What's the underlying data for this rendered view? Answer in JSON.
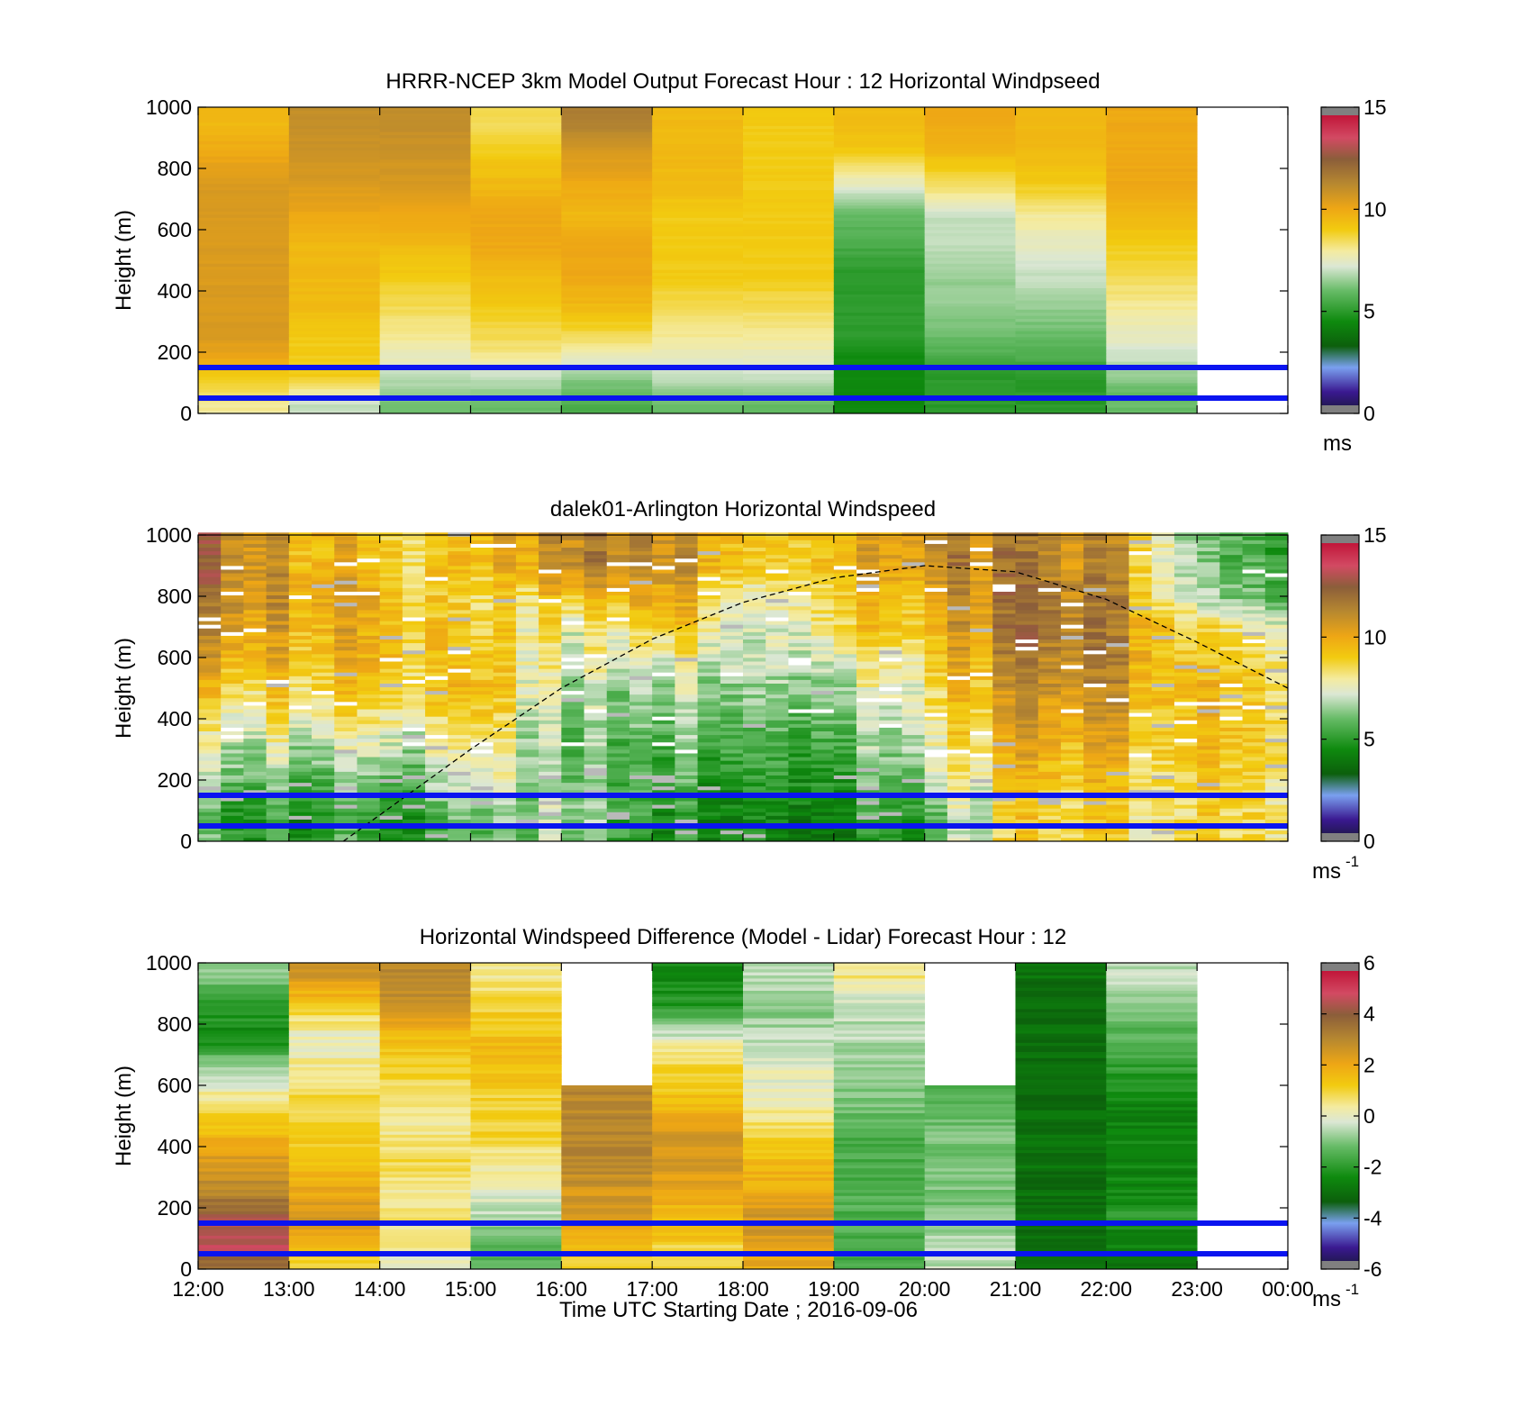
{
  "figure": {
    "xlabel": "Time UTC  Starting Date ; 2016-09-06",
    "x_ticks": [
      "12:00",
      "13:00",
      "14:00",
      "15:00",
      "16:00",
      "17:00",
      "18:00",
      "19:00",
      "20:00",
      "21:00",
      "22:00",
      "23:00",
      "00:00"
    ],
    "reference_lines_m": [
      150,
      50
    ],
    "reference_line_color": "#0a14f0"
  },
  "chart_data": [
    {
      "type": "heatmap",
      "title": "HRRR-NCEP 3km Model Output   Forecast Hour : 12 Horizontal Windpseed",
      "ylabel": "Height (m)",
      "ylim": [
        0,
        1000
      ],
      "y_ticks": [
        "0",
        "200",
        "400",
        "600",
        "800",
        "1000"
      ],
      "x_hours_utc": [
        12,
        13,
        14,
        15,
        16,
        17,
        18,
        19,
        20,
        21,
        22
      ],
      "colorbar": {
        "min": 0,
        "max": 15,
        "ticks": [
          "0",
          "5",
          "10",
          "15"
        ],
        "unit": "ms"
      },
      "value_grid_ms": {
        "heights_m": [
          25,
          75,
          125,
          175,
          250,
          350,
          450,
          550,
          650,
          750,
          850,
          950
        ],
        "columns": [
          [
            8,
            8.5,
            9,
            10,
            10.5,
            10.5,
            10.5,
            10.5,
            10.5,
            10.5,
            10,
            9.5
          ],
          [
            7,
            8,
            9,
            9,
            9,
            9.5,
            9.5,
            9.5,
            10,
            10.5,
            10.8,
            11
          ],
          [
            6,
            6.5,
            7,
            7.5,
            8,
            8.5,
            9,
            9.5,
            10,
            10.5,
            10.8,
            11
          ],
          [
            6,
            6.5,
            7,
            8,
            8.5,
            9,
            9.5,
            10,
            10,
            9.5,
            9,
            8.5
          ],
          [
            5.5,
            6,
            6.5,
            7.5,
            8.5,
            9.5,
            10,
            10,
            9.5,
            10,
            10.5,
            11.5
          ],
          [
            6,
            6.5,
            7,
            7.5,
            8,
            8.5,
            9,
            9,
            9,
            9.5,
            9.5,
            9.5
          ],
          [
            6,
            6.5,
            7,
            7.5,
            8,
            8.5,
            9,
            9,
            9,
            9,
            9,
            9
          ],
          [
            4.5,
            4.5,
            4.5,
            4.5,
            5,
            5,
            5,
            5.5,
            6,
            7.5,
            9,
            9.5
          ],
          [
            5,
            5,
            5,
            5.5,
            6,
            6.5,
            6.5,
            7,
            7,
            8.5,
            9.5,
            10
          ],
          [
            5,
            5,
            5,
            5.5,
            6,
            6.5,
            7,
            7.5,
            8,
            9,
            9.5,
            9.5
          ],
          [
            6,
            6,
            6.5,
            7,
            7.5,
            8,
            8.5,
            9,
            9.5,
            10,
            10,
            10
          ]
        ]
      }
    },
    {
      "type": "heatmap",
      "title": "dalek01-Arlington  Horizontal Windspeed",
      "ylabel": "Height (m)",
      "ylim": [
        0,
        1000
      ],
      "y_ticks": [
        "0",
        "200",
        "400",
        "600",
        "800",
        "1000"
      ],
      "x_hours_utc": [
        12,
        13,
        14,
        15,
        16,
        17,
        18,
        19,
        20,
        21,
        22,
        23
      ],
      "colorbar": {
        "min": 0,
        "max": 15,
        "ticks": [
          "0",
          "5",
          "10",
          "15"
        ],
        "unit": "ms",
        "unit_exponent": "-1"
      },
      "profiles_ms": {
        "heights_m": [
          25,
          100,
          200,
          300,
          400,
          500,
          600,
          700,
          800,
          900
        ],
        "columns": [
          [
            5.5,
            5.5,
            6.5,
            7,
            8,
            9,
            10,
            11,
            11.5,
            12
          ],
          [
            5,
            5,
            6,
            7,
            8,
            9,
            9.5,
            10,
            10.5,
            10
          ],
          [
            5,
            5,
            6,
            7,
            8,
            9,
            9.5,
            9.5,
            9.5,
            9
          ],
          [
            5.5,
            6,
            7,
            7.5,
            8.5,
            9,
            9,
            8.5,
            8,
            9
          ],
          [
            6.5,
            6.5,
            6,
            6,
            6,
            6.5,
            7,
            7.5,
            9,
            11
          ],
          [
            5,
            5,
            5.5,
            6,
            6.5,
            7,
            8,
            9.5,
            10.5,
            11.5
          ],
          [
            4.5,
            4.5,
            5,
            5.5,
            6,
            6.5,
            7,
            7,
            7.5,
            9
          ],
          [
            4.5,
            5,
            5.5,
            6,
            6.5,
            7,
            8,
            9,
            9.5,
            10
          ],
          [
            5.5,
            6,
            7,
            7.5,
            8,
            8.5,
            9,
            9.5,
            10,
            11
          ],
          [
            9,
            9,
            9.5,
            10,
            10.5,
            11,
            11.5,
            12,
            12,
            11.5
          ],
          [
            8.5,
            8.5,
            9,
            9.5,
            10,
            10.5,
            11,
            11,
            11,
            10.5
          ],
          [
            8.5,
            8.5,
            8.5,
            9,
            9,
            9,
            8.5,
            8,
            6,
            5.5
          ]
        ]
      },
      "dashed_curve": {
        "points": [
          [
            13.6,
            0
          ],
          [
            15.0,
            300
          ],
          [
            16.0,
            500
          ],
          [
            17.0,
            660
          ],
          [
            18.0,
            780
          ],
          [
            19.0,
            860
          ],
          [
            20.0,
            900
          ],
          [
            21.0,
            880
          ],
          [
            22.0,
            790
          ],
          [
            23.0,
            650
          ],
          [
            24.0,
            500
          ]
        ]
      }
    },
    {
      "type": "heatmap",
      "title": "Horizontal Windspeed Difference (Model - Lidar) Forecast Hour : 12",
      "ylabel": "Height (m)",
      "ylim": [
        0,
        1000
      ],
      "y_ticks": [
        "0",
        "200",
        "400",
        "600",
        "800",
        "1000"
      ],
      "x_hours_utc": [
        12,
        13,
        14,
        15,
        16,
        17,
        18,
        19,
        20,
        21,
        22
      ],
      "colorbar": {
        "min": -6,
        "max": 6,
        "ticks": [
          "-6",
          "-4",
          "-2",
          "0",
          "2",
          "4",
          "6"
        ],
        "unit": "ms",
        "unit_exponent": "-1"
      },
      "value_grid_ms": {
        "heights_m": [
          25,
          75,
          125,
          175,
          250,
          350,
          450,
          550,
          650,
          750,
          850,
          950
        ],
        "columns": [
          [
            3.8,
            4.5,
            4.5,
            4,
            3,
            2.5,
            1.5,
            0.5,
            -0.5,
            -2.5,
            -2,
            -1
          ],
          [
            1,
            1.5,
            2,
            2.5,
            2,
            1.5,
            1,
            1,
            0.5,
            0,
            1,
            2.5
          ],
          [
            0,
            0.3,
            0.5,
            0.5,
            0.5,
            0.8,
            0.5,
            0.5,
            1,
            1.5,
            2.5,
            3
          ],
          [
            -1.5,
            -1.5,
            -1,
            -0.5,
            0,
            0.5,
            1,
            1,
            1.5,
            1.5,
            1,
            0.5
          ],
          [
            1,
            1.5,
            2,
            2.5,
            2.5,
            3,
            3,
            3,
            null,
            null,
            null,
            null
          ],
          [
            1,
            1,
            1.5,
            1.5,
            2,
            2.5,
            2.5,
            1.5,
            1,
            0,
            -2,
            -2.5
          ],
          [
            2,
            2,
            2.5,
            2.5,
            2,
            1.5,
            1,
            0,
            0,
            -0.5,
            -1,
            -0.5
          ],
          [
            -1.5,
            -1.5,
            -1.5,
            -1.5,
            -1.5,
            -1.5,
            -1.5,
            -1,
            -1,
            -0.5,
            -0.5,
            0.5
          ],
          [
            -0.5,
            -0.5,
            -0.8,
            -1,
            -1,
            -1,
            -1,
            -1.5,
            null,
            null,
            null,
            null
          ],
          [
            -3,
            -3,
            -3,
            -3,
            -3,
            -3,
            -3,
            -3,
            -3,
            -3,
            -3,
            -3
          ],
          [
            -3,
            -2.5,
            -2.5,
            -2,
            -2.5,
            -2.5,
            -2.5,
            -2.5,
            -2,
            -1.5,
            -1,
            -0.5
          ]
        ]
      }
    }
  ]
}
